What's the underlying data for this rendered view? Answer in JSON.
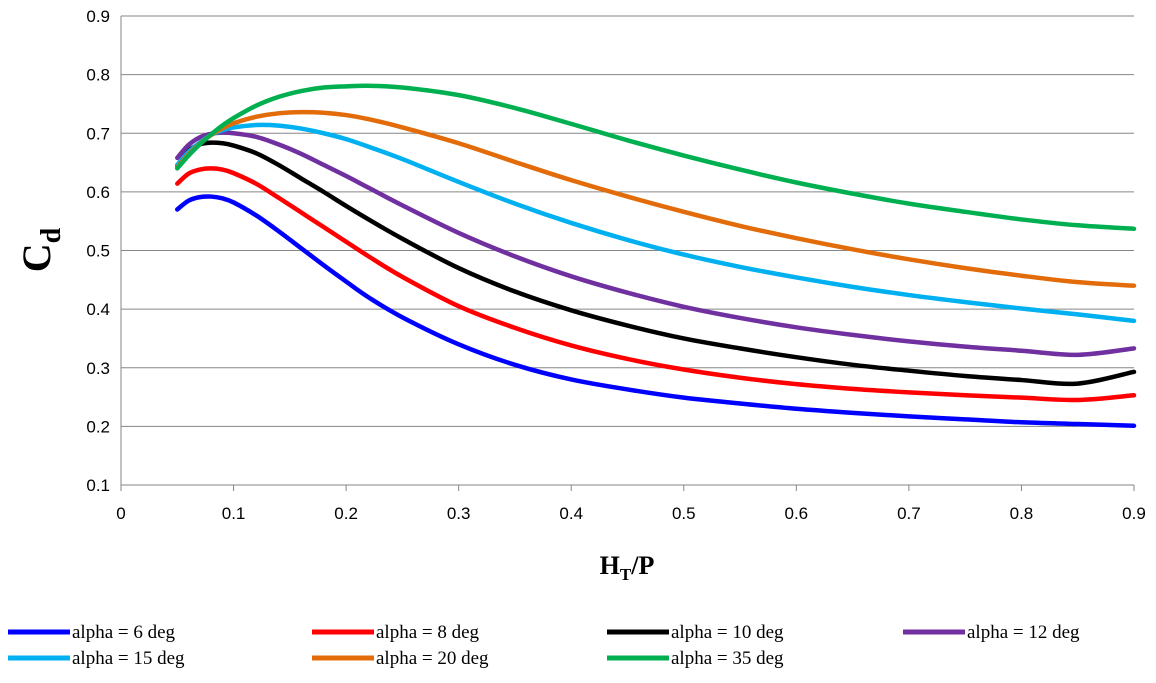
{
  "chart_data": {
    "type": "line",
    "xlabel": {
      "main": "H",
      "sub": "T",
      "rest": "/P"
    },
    "ylabel": {
      "main": "C",
      "sub": "d"
    },
    "xlim": [
      0,
      0.9
    ],
    "ylim": [
      0.1,
      0.9
    ],
    "x_ticks": [
      "0",
      "0.1",
      "0.2",
      "0.3",
      "0.4",
      "0.5",
      "0.6",
      "0.7",
      "0.8",
      "0.9"
    ],
    "y_ticks": [
      "0.1",
      "0.2",
      "0.3",
      "0.4",
      "0.5",
      "0.6",
      "0.7",
      "0.8",
      "0.9"
    ],
    "grid": "horizontal",
    "legend_position": "bottom",
    "x": [
      0.05,
      0.06,
      0.07,
      0.08,
      0.09,
      0.1,
      0.12,
      0.14,
      0.16,
      0.18,
      0.2,
      0.22,
      0.25,
      0.3,
      0.35,
      0.4,
      0.45,
      0.5,
      0.55,
      0.6,
      0.65,
      0.7,
      0.75,
      0.8,
      0.85,
      0.9
    ],
    "series": [
      {
        "name": "alpha = 6 deg",
        "color": "#0000ff",
        "values": [
          0.57,
          0.585,
          0.591,
          0.592,
          0.589,
          0.582,
          0.56,
          0.533,
          0.504,
          0.475,
          0.447,
          0.42,
          0.386,
          0.34,
          0.305,
          0.28,
          0.263,
          0.249,
          0.239,
          0.23,
          0.223,
          0.217,
          0.212,
          0.207,
          0.204,
          0.201
        ]
      },
      {
        "name": "alpha = 8 deg",
        "color": "#ff0000",
        "values": [
          0.614,
          0.631,
          0.638,
          0.64,
          0.638,
          0.632,
          0.614,
          0.59,
          0.565,
          0.54,
          0.515,
          0.49,
          0.455,
          0.405,
          0.368,
          0.338,
          0.315,
          0.297,
          0.283,
          0.272,
          0.264,
          0.258,
          0.253,
          0.249,
          0.245,
          0.253
        ]
      },
      {
        "name": "alpha = 10 deg",
        "color": "#000000",
        "values": [
          0.645,
          0.67,
          0.681,
          0.684,
          0.683,
          0.679,
          0.666,
          0.646,
          0.623,
          0.6,
          0.576,
          0.553,
          0.52,
          0.47,
          0.43,
          0.398,
          0.372,
          0.35,
          0.333,
          0.318,
          0.305,
          0.295,
          0.286,
          0.279,
          0.273,
          0.293
        ]
      },
      {
        "name": "alpha = 12 deg",
        "color": "#7030a0",
        "values": [
          0.658,
          0.68,
          0.693,
          0.699,
          0.701,
          0.7,
          0.694,
          0.681,
          0.665,
          0.646,
          0.627,
          0.607,
          0.577,
          0.53,
          0.49,
          0.456,
          0.428,
          0.404,
          0.385,
          0.369,
          0.356,
          0.345,
          0.336,
          0.329,
          0.322,
          0.333
        ]
      },
      {
        "name": "alpha = 15 deg",
        "color": "#00b0f0",
        "values": [
          0.646,
          0.668,
          0.684,
          0.697,
          0.705,
          0.71,
          0.714,
          0.713,
          0.708,
          0.7,
          0.69,
          0.677,
          0.656,
          0.617,
          0.58,
          0.547,
          0.518,
          0.493,
          0.472,
          0.454,
          0.438,
          0.424,
          0.412,
          0.401,
          0.391,
          0.38
        ]
      },
      {
        "name": "alpha = 20 deg",
        "color": "#e36c0a",
        "values": [
          0.642,
          0.664,
          0.682,
          0.697,
          0.708,
          0.717,
          0.728,
          0.734,
          0.736,
          0.735,
          0.731,
          0.724,
          0.71,
          0.683,
          0.651,
          0.62,
          0.592,
          0.566,
          0.542,
          0.521,
          0.502,
          0.485,
          0.47,
          0.457,
          0.446,
          0.44
        ]
      },
      {
        "name": "alpha = 35 deg",
        "color": "#00b050",
        "values": [
          0.64,
          0.662,
          0.681,
          0.698,
          0.713,
          0.726,
          0.747,
          0.762,
          0.772,
          0.778,
          0.78,
          0.781,
          0.778,
          0.765,
          0.743,
          0.716,
          0.688,
          0.662,
          0.638,
          0.616,
          0.597,
          0.58,
          0.566,
          0.553,
          0.543,
          0.537
        ]
      }
    ]
  }
}
